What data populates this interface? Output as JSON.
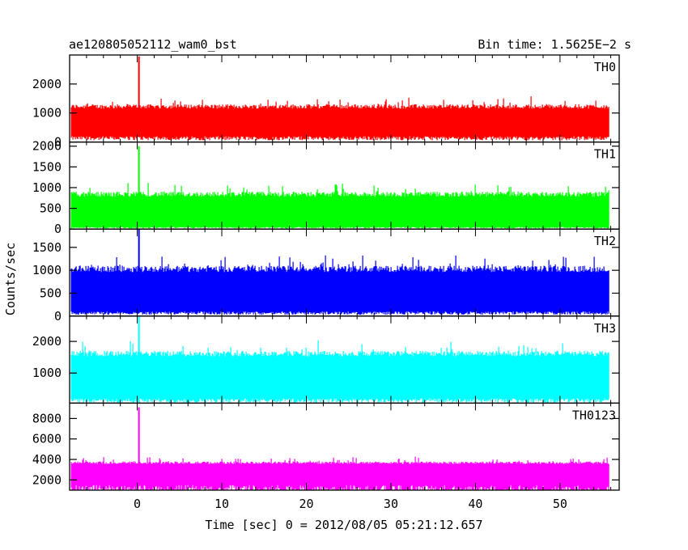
{
  "header": {
    "title": "ae120805052112_wam0_bst",
    "bin_time": "Bin time: 1.5625E−2 s"
  },
  "axes": {
    "ylabel": "Counts/sec",
    "xlabel": "Time [sec] 0 = 2012/08/05 05:21:12.657"
  },
  "chart_data": {
    "type": "line",
    "title": "ae120805052112_wam0_bst",
    "subtitle": "Bin time: 1.5625E−2 s",
    "xlabel": "Time [sec] 0 = 2012/08/05 05:21:12.657",
    "ylabel": "Counts/sec",
    "xlim": [
      -8,
      57
    ],
    "x_ticks": [
      0,
      10,
      20,
      30,
      40,
      50
    ],
    "x_range_data": [
      -7.8,
      55.8
    ],
    "grid": false,
    "legend": "none",
    "series": [
      {
        "name": "TH0",
        "color": "#ff0000",
        "ylim": [
          0,
          3000
        ],
        "y_ticks": [
          0,
          1000,
          2000
        ],
        "baseline_mean": 700,
        "noise_low": 200,
        "noise_high": 1300,
        "peak": {
          "x": 0.2,
          "y": 2950
        }
      },
      {
        "name": "TH1",
        "color": "#00ff00",
        "ylim": [
          0,
          2100
        ],
        "y_ticks": [
          0,
          500,
          1000,
          1500,
          2000
        ],
        "baseline_mean": 420,
        "noise_low": 50,
        "noise_high": 900,
        "peak": {
          "x": 0.2,
          "y": 2000
        }
      },
      {
        "name": "TH2",
        "color": "#0000ff",
        "ylim": [
          0,
          1900
        ],
        "y_ticks": [
          0,
          500,
          1000,
          1500
        ],
        "baseline_mean": 550,
        "noise_low": 100,
        "noise_high": 1100,
        "peak": {
          "x": 0.2,
          "y": 1900
        }
      },
      {
        "name": "TH3",
        "color": "#00ffff",
        "ylim": [
          50,
          2800
        ],
        "y_ticks": [
          1000,
          2000
        ],
        "baseline_mean": 1000,
        "noise_low": 200,
        "noise_high": 1700,
        "peak": {
          "x": 0.2,
          "y": 2800
        }
      },
      {
        "name": "TH0123",
        "color": "#ff00ff",
        "ylim": [
          1000,
          9500
        ],
        "y_ticks": [
          2000,
          4000,
          6000,
          8000
        ],
        "baseline_mean": 2800,
        "noise_low": 1500,
        "noise_high": 3800,
        "peak": {
          "x": 0.2,
          "y": 9100
        }
      }
    ]
  }
}
